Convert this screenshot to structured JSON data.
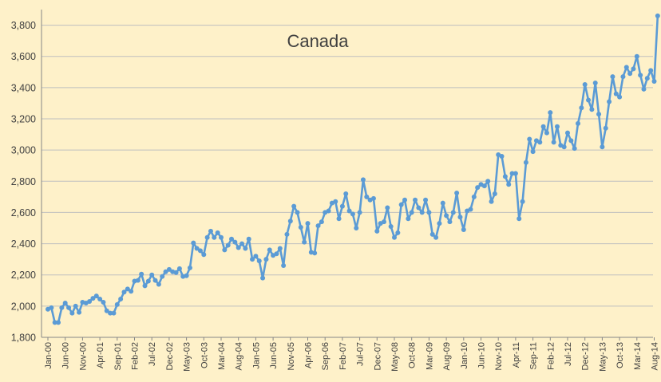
{
  "colors": {
    "background": "#FEF1C9",
    "series": "#5B9BD5",
    "grid": "#BFBFBF",
    "text": "#404040"
  },
  "chart_data": {
    "type": "line",
    "title": "Canada",
    "xlabel": "",
    "ylabel": "",
    "ylim": [
      1800,
      3900
    ],
    "y_ticks": [
      1800,
      2000,
      2200,
      2400,
      2600,
      2800,
      3000,
      3200,
      3400,
      3600,
      3800
    ],
    "y_tick_labels": [
      "1,800",
      "2,000",
      "2,200",
      "2,400",
      "2,600",
      "2,800",
      "3,000",
      "3,200",
      "3,400",
      "3,600",
      "3,800"
    ],
    "x_tick_labels": [
      "Jan-00",
      "Jun-00",
      "Nov-00",
      "Apr-01",
      "Sep-01",
      "Feb-02",
      "Jul-02",
      "Dec-02",
      "May-03",
      "Oct-03",
      "Mar-04",
      "Aug-04",
      "Jan-05",
      "Jun-05",
      "Nov-05",
      "Apr-06",
      "Sep-06",
      "Feb-07",
      "Jul-07",
      "Dec-07",
      "May-08",
      "Oct-08",
      "Mar-09",
      "Aug-09",
      "Jan-10",
      "Jun-10",
      "Nov-10",
      "Apr-11",
      "Sep-11",
      "Feb-12",
      "Jul-12",
      "Dec-12",
      "May-13",
      "Oct-13",
      "Mar-14",
      "Aug-14"
    ],
    "grid": true,
    "legend": "none",
    "x_start": "Jan-00",
    "x_frequency": "monthly",
    "series": [
      {
        "values": [
          1980,
          1990,
          1895,
          1895,
          1990,
          2020,
          1990,
          1955,
          2000,
          1960,
          2025,
          2020,
          2030,
          2050,
          2065,
          2045,
          2025,
          1970,
          1955,
          1955,
          2010,
          2045,
          2090,
          2110,
          2095,
          2160,
          2165,
          2205,
          2130,
          2160,
          2200,
          2165,
          2140,
          2190,
          2220,
          2235,
          2220,
          2215,
          2240,
          2190,
          2195,
          2245,
          2405,
          2370,
          2355,
          2330,
          2440,
          2480,
          2440,
          2470,
          2440,
          2360,
          2390,
          2430,
          2410,
          2375,
          2400,
          2370,
          2430,
          2300,
          2320,
          2290,
          2180,
          2300,
          2360,
          2325,
          2335,
          2370,
          2260,
          2460,
          2545,
          2640,
          2600,
          2505,
          2410,
          2530,
          2345,
          2340,
          2515,
          2540,
          2600,
          2610,
          2660,
          2670,
          2560,
          2640,
          2720,
          2610,
          2590,
          2500,
          2600,
          2810,
          2700,
          2680,
          2690,
          2480,
          2530,
          2540,
          2630,
          2510,
          2440,
          2470,
          2650,
          2680,
          2560,
          2600,
          2680,
          2630,
          2600,
          2680,
          2600,
          2460,
          2440,
          2530,
          2660,
          2580,
          2540,
          2600,
          2725,
          2570,
          2490,
          2610,
          2620,
          2700,
          2760,
          2780,
          2770,
          2800,
          2670,
          2720,
          2970,
          2960,
          2830,
          2780,
          2850,
          2850,
          2560,
          2670,
          2920,
          3070,
          2990,
          3060,
          3050,
          3150,
          3110,
          3240,
          3050,
          3150,
          3030,
          3020,
          3110,
          3060,
          3010,
          3170,
          3270,
          3420,
          3320,
          3260,
          3430,
          3230,
          3020,
          3140,
          3310,
          3470,
          3360,
          3340,
          3470,
          3530,
          3490,
          3520,
          3600,
          3480,
          3390,
          3460,
          3510,
          3440,
          3860
        ]
      }
    ]
  }
}
